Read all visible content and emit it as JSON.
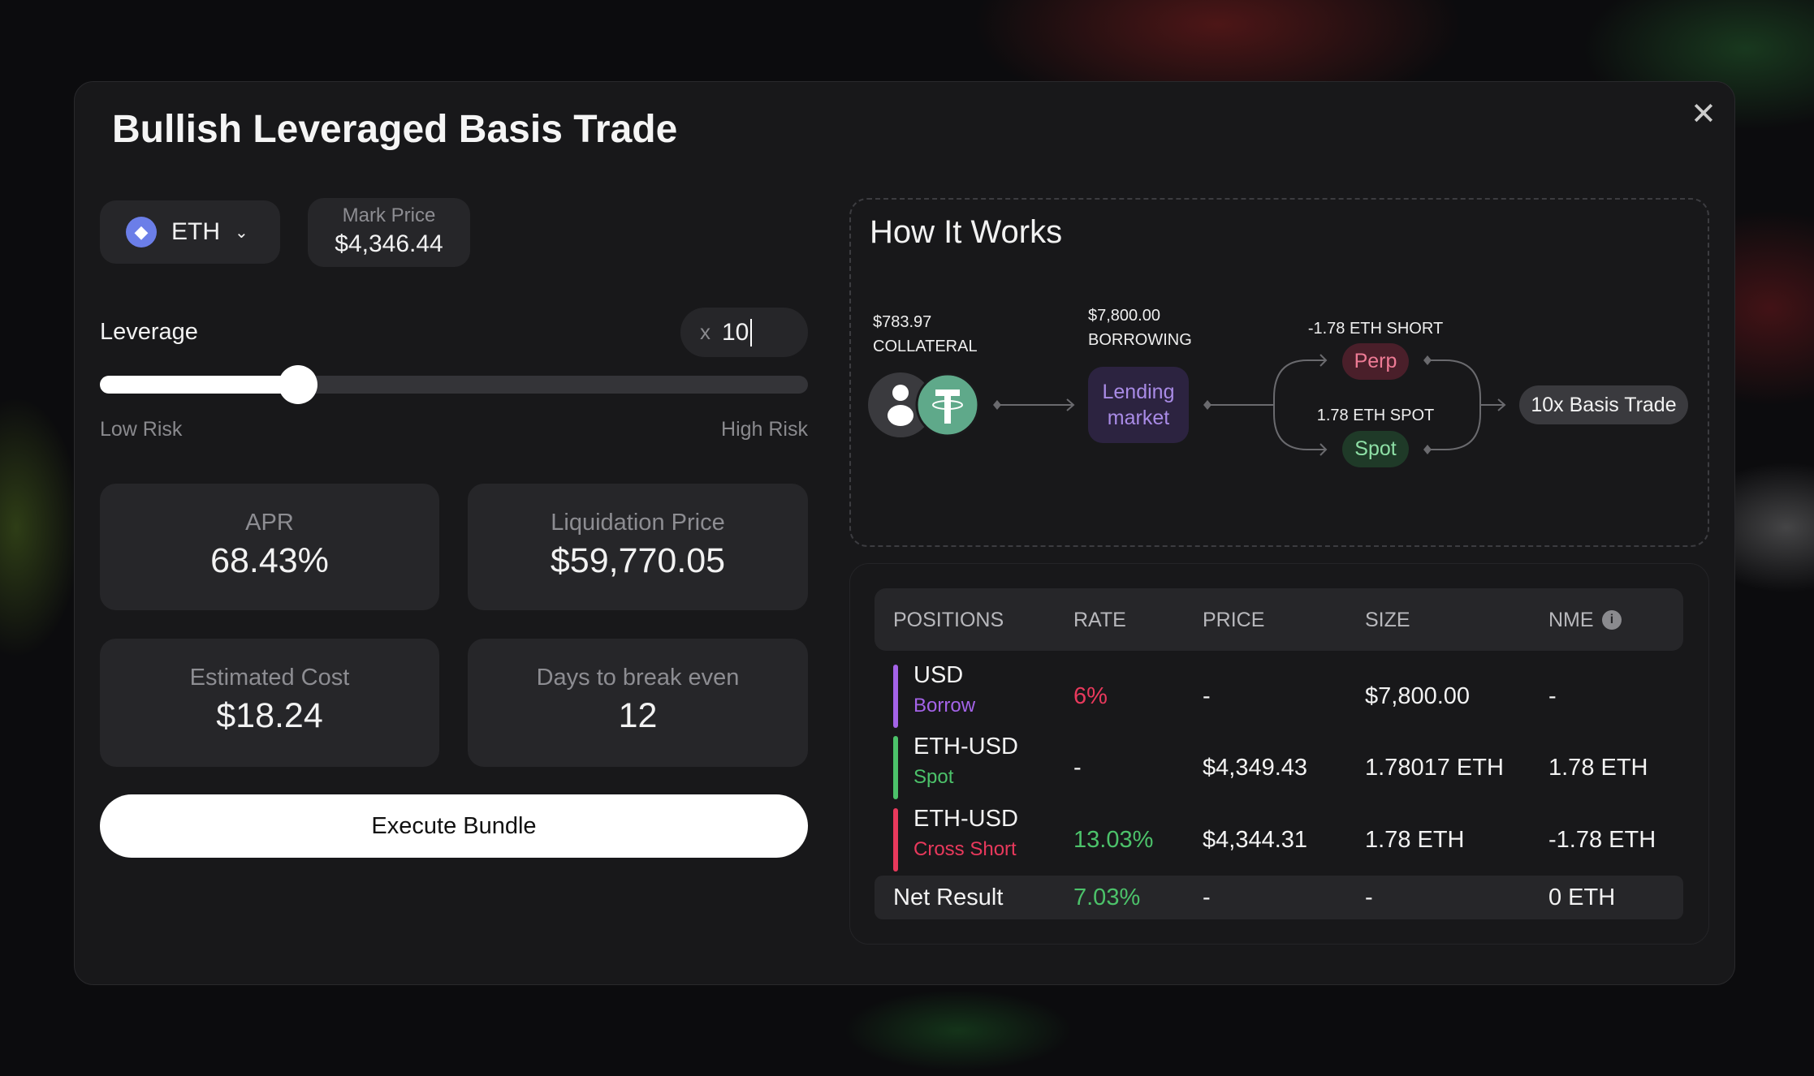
{
  "modal": {
    "title": "Bullish Leveraged Basis Trade",
    "close_icon": "close-icon"
  },
  "asset": {
    "symbol": "ETH",
    "icon": "ethereum-icon",
    "mark_price_label": "Mark Price",
    "mark_price": "$4,346.44"
  },
  "leverage": {
    "label": "Leverage",
    "prefix": "x",
    "value": "10",
    "slider_fraction": 0.28,
    "low_label": "Low Risk",
    "high_label": "High Risk"
  },
  "stats": [
    {
      "label": "APR",
      "value": "68.43%"
    },
    {
      "label": "Liquidation Price",
      "value": "$59,770.05"
    },
    {
      "label": "Estimated Cost",
      "value": "$18.24"
    },
    {
      "label": "Days to break even",
      "value": "12"
    }
  ],
  "execute_label": "Execute Bundle",
  "how": {
    "title": "How It Works",
    "collateral_amount": "$783.97",
    "collateral_label": "COLLATERAL",
    "borrow_amount": "$7,800.00",
    "borrow_label": "BORROWING",
    "lending_line1": "Lending",
    "lending_line2": "market",
    "short_label": "-1.78 ETH SHORT",
    "perp": "Perp",
    "spot_label": "1.78 ETH SPOT",
    "spot": "Spot",
    "result": "10x Basis Trade"
  },
  "table": {
    "headers": [
      "POSITIONS",
      "RATE",
      "PRICE",
      "SIZE",
      "NME"
    ],
    "rows": [
      {
        "asset": "USD",
        "type": "Borrow",
        "rate": "6%",
        "price": "-",
        "size": "$7,800.00",
        "nme": "-"
      },
      {
        "asset": "ETH-USD",
        "type": "Spot",
        "rate": "-",
        "price": "$4,349.43",
        "size": "1.78017 ETH",
        "nme": "1.78 ETH"
      },
      {
        "asset": "ETH-USD",
        "type": "Cross Short",
        "rate": "13.03%",
        "price": "$4,344.31",
        "size": "1.78 ETH",
        "nme": "-1.78 ETH"
      }
    ],
    "net": {
      "label": "Net Result",
      "rate": "7.03%",
      "price": "-",
      "size": "-",
      "nme": "0 ETH"
    }
  },
  "colors": {
    "borrow": "#a463e8",
    "spot": "#4cc26a",
    "short": "#e8395c",
    "negative_rate": "#e8395c",
    "positive_rate": "#4cc26a"
  }
}
